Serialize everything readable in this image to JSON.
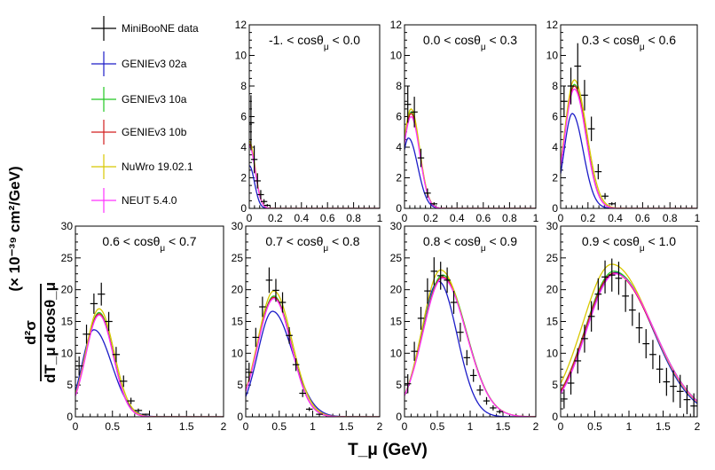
{
  "y_axis_title": {
    "numerator": "d²σ",
    "denominator": "dT_μ dcosθ_μ",
    "units": "(× 10⁻³⁹ cm²/GeV)"
  },
  "x_axis_title": "T_μ (GeV)",
  "legend": [
    {
      "label": "MiniBooNE data",
      "color": "#000000",
      "kind": "data"
    },
    {
      "label": "GENIEv3 02a",
      "color": "#1c1cc8",
      "kind": "line"
    },
    {
      "label": "GENIEv3 10a",
      "color": "#22c822",
      "kind": "line"
    },
    {
      "label": "GENIEv3 10b",
      "color": "#d21e1e",
      "kind": "line"
    },
    {
      "label": "NuWro 19.02.1",
      "color": "#d8c800",
      "kind": "line"
    },
    {
      "label": "NEUT 5.4.0",
      "color": "#ff30ff",
      "kind": "line"
    }
  ],
  "chart_data": [
    {
      "type": "line",
      "title": "-1. < cosθμ < 0.0",
      "xlabel": "T_μ (GeV)",
      "ylabel": "",
      "xlim": [
        0,
        1
      ],
      "ylim": [
        0,
        12
      ],
      "xticks": [
        "0",
        "0.2",
        "0.4",
        "0.6",
        "0.8",
        "1"
      ],
      "yticks": [
        "0",
        "2",
        "4",
        "6",
        "8",
        "10",
        "12"
      ],
      "data": [
        {
          "x": 0.013,
          "y": 5.6,
          "err": 1.8
        },
        {
          "x": 0.038,
          "y": 3.2,
          "err": 0.9
        },
        {
          "x": 0.063,
          "y": 1.8,
          "err": 0.5
        },
        {
          "x": 0.088,
          "y": 0.9,
          "err": 0.3
        },
        {
          "x": 0.113,
          "y": 0.45,
          "err": 0.15
        },
        {
          "x": 0.138,
          "y": 0.2,
          "err": 0.08
        }
      ],
      "models": [
        {
          "name": "GENIEv3 02a",
          "peak_x": 0.0,
          "peak_y": 2.8,
          "wl": 0.04,
          "wr": 0.04
        },
        {
          "name": "GENIEv3 10a",
          "peak_x": 0.0,
          "peak_y": 4.2,
          "wl": 0.04,
          "wr": 0.045
        },
        {
          "name": "GENIEv3 10b",
          "peak_x": 0.0,
          "peak_y": 4.2,
          "wl": 0.04,
          "wr": 0.045
        },
        {
          "name": "NuWro 19.02.1",
          "peak_x": 0.0,
          "peak_y": 4.4,
          "wl": 0.04,
          "wr": 0.045
        },
        {
          "name": "NEUT 5.4.0",
          "peak_x": 0.0,
          "peak_y": 4.1,
          "wl": 0.04,
          "wr": 0.045
        }
      ]
    },
    {
      "type": "line",
      "title": "0.0 < cosθμ < 0.3",
      "xlabel": "T_μ (GeV)",
      "ylabel": "",
      "xlim": [
        0,
        1
      ],
      "ylim": [
        0,
        12
      ],
      "xticks": [
        "0",
        "0.2",
        "0.4",
        "0.6",
        "0.8",
        "1"
      ],
      "yticks": [
        "0",
        "2",
        "4",
        "6",
        "8",
        "10",
        "12"
      ],
      "data": [
        {
          "x": 0.025,
          "y": 6.8,
          "err": 1.2
        },
        {
          "x": 0.075,
          "y": 6.3,
          "err": 1.0
        },
        {
          "x": 0.125,
          "y": 3.3,
          "err": 0.6
        },
        {
          "x": 0.175,
          "y": 1.0,
          "err": 0.3
        },
        {
          "x": 0.225,
          "y": 0.3,
          "err": 0.1
        }
      ],
      "models": [
        {
          "name": "GENIEv3 02a",
          "peak_x": 0.03,
          "peak_y": 4.6,
          "wl": 0.05,
          "wr": 0.07
        },
        {
          "name": "GENIEv3 10a",
          "peak_x": 0.05,
          "peak_y": 6.3,
          "wl": 0.06,
          "wr": 0.065
        },
        {
          "name": "GENIEv3 10b",
          "peak_x": 0.05,
          "peak_y": 6.2,
          "wl": 0.06,
          "wr": 0.065
        },
        {
          "name": "NuWro 19.02.1",
          "peak_x": 0.05,
          "peak_y": 6.5,
          "wl": 0.06,
          "wr": 0.065
        },
        {
          "name": "NEUT 5.4.0",
          "peak_x": 0.05,
          "peak_y": 6.0,
          "wl": 0.06,
          "wr": 0.065
        }
      ]
    },
    {
      "type": "line",
      "title": "0.3 < cosθμ < 0.6",
      "xlabel": "T_μ (GeV)",
      "ylabel": "",
      "xlim": [
        0,
        1
      ],
      "ylim": [
        0,
        12
      ],
      "xticks": [
        "0",
        "0.2",
        "0.4",
        "0.6",
        "0.8",
        "1"
      ],
      "yticks": [
        "0",
        "2",
        "4",
        "6",
        "8",
        "10",
        "12"
      ],
      "data": [
        {
          "x": 0.025,
          "y": 7.0,
          "err": 1.0
        },
        {
          "x": 0.075,
          "y": 8.0,
          "err": 1.2
        },
        {
          "x": 0.125,
          "y": 9.3,
          "err": 1.5
        },
        {
          "x": 0.175,
          "y": 7.4,
          "err": 1.0
        },
        {
          "x": 0.225,
          "y": 5.2,
          "err": 0.8
        },
        {
          "x": 0.275,
          "y": 2.4,
          "err": 0.5
        },
        {
          "x": 0.325,
          "y": 0.8,
          "err": 0.2
        },
        {
          "x": 0.375,
          "y": 0.3,
          "err": 0.1
        }
      ],
      "models": [
        {
          "name": "GENIEv3 02a",
          "peak_x": 0.085,
          "peak_y": 6.2,
          "wl": 0.06,
          "wr": 0.08
        },
        {
          "name": "GENIEv3 10a",
          "peak_x": 0.1,
          "peak_y": 8.1,
          "wl": 0.07,
          "wr": 0.085
        },
        {
          "name": "GENIEv3 10b",
          "peak_x": 0.1,
          "peak_y": 8.0,
          "wl": 0.07,
          "wr": 0.085
        },
        {
          "name": "NuWro 19.02.1",
          "peak_x": 0.1,
          "peak_y": 8.4,
          "wl": 0.07,
          "wr": 0.09
        },
        {
          "name": "NEUT 5.4.0",
          "peak_x": 0.1,
          "peak_y": 7.8,
          "wl": 0.07,
          "wr": 0.085
        }
      ]
    },
    {
      "type": "line",
      "title": "0.6 < cosθμ < 0.7",
      "xlabel": "T_μ (GeV)",
      "ylabel": "",
      "xlim": [
        0,
        2
      ],
      "ylim": [
        0,
        30
      ],
      "xticks": [
        "0",
        "0.5",
        "1",
        "1.5",
        "2"
      ],
      "yticks": [
        "0",
        "5",
        "10",
        "15",
        "20",
        "25",
        "30"
      ],
      "data": [
        {
          "x": 0.05,
          "y": 8.0,
          "err": 1.5
        },
        {
          "x": 0.15,
          "y": 13.0,
          "err": 1.5
        },
        {
          "x": 0.25,
          "y": 17.8,
          "err": 1.6
        },
        {
          "x": 0.35,
          "y": 19.3,
          "err": 1.8
        },
        {
          "x": 0.45,
          "y": 15.0,
          "err": 1.5
        },
        {
          "x": 0.55,
          "y": 9.8,
          "err": 1.2
        },
        {
          "x": 0.65,
          "y": 5.6,
          "err": 0.9
        },
        {
          "x": 0.75,
          "y": 2.5,
          "err": 0.5
        },
        {
          "x": 0.85,
          "y": 1.0,
          "err": 0.3
        },
        {
          "x": 0.95,
          "y": 0.4,
          "err": 0.1
        }
      ],
      "models": [
        {
          "name": "GENIEv3 02a",
          "peak_x": 0.25,
          "peak_y": 13.7,
          "wl": 0.16,
          "wr": 0.24
        },
        {
          "name": "GENIEv3 10a",
          "peak_x": 0.32,
          "peak_y": 16.4,
          "wl": 0.18,
          "wr": 0.19
        },
        {
          "name": "GENIEv3 10b",
          "peak_x": 0.32,
          "peak_y": 16.2,
          "wl": 0.18,
          "wr": 0.19
        },
        {
          "name": "NuWro 19.02.1",
          "peak_x": 0.32,
          "peak_y": 17.0,
          "wl": 0.18,
          "wr": 0.2
        },
        {
          "name": "NEUT 5.4.0",
          "peak_x": 0.32,
          "peak_y": 16.0,
          "wl": 0.18,
          "wr": 0.19
        }
      ]
    },
    {
      "type": "line",
      "title": "0.7 < cosθμ < 0.8",
      "xlabel": "T_μ (GeV)",
      "ylabel": "",
      "xlim": [
        0,
        2
      ],
      "ylim": [
        0,
        30
      ],
      "xticks": [
        "0",
        "0.5",
        "1",
        "1.5",
        "2"
      ],
      "yticks": [
        "0",
        "5",
        "10",
        "15",
        "20",
        "25",
        "30"
      ],
      "data": [
        {
          "x": 0.05,
          "y": 7.0,
          "err": 1.5
        },
        {
          "x": 0.15,
          "y": 12.5,
          "err": 1.5
        },
        {
          "x": 0.25,
          "y": 17.3,
          "err": 1.6
        },
        {
          "x": 0.35,
          "y": 21.5,
          "err": 2.0
        },
        {
          "x": 0.45,
          "y": 19.9,
          "err": 1.8
        },
        {
          "x": 0.55,
          "y": 18.0,
          "err": 1.6
        },
        {
          "x": 0.65,
          "y": 12.8,
          "err": 1.3
        },
        {
          "x": 0.75,
          "y": 8.2,
          "err": 1.0
        },
        {
          "x": 0.85,
          "y": 3.7,
          "err": 0.6
        },
        {
          "x": 0.95,
          "y": 1.2,
          "err": 0.3
        },
        {
          "x": 1.1,
          "y": 0.4,
          "err": 0.1
        }
      ],
      "models": [
        {
          "name": "GENIEv3 02a",
          "peak_x": 0.4,
          "peak_y": 16.6,
          "wl": 0.22,
          "wr": 0.3
        },
        {
          "name": "GENIEv3 10a",
          "peak_x": 0.42,
          "peak_y": 19.0,
          "wl": 0.24,
          "wr": 0.26
        },
        {
          "name": "GENIEv3 10b",
          "peak_x": 0.42,
          "peak_y": 18.8,
          "wl": 0.24,
          "wr": 0.26
        },
        {
          "name": "NuWro 19.02.1",
          "peak_x": 0.42,
          "peak_y": 19.8,
          "wl": 0.24,
          "wr": 0.27
        },
        {
          "name": "NEUT 5.4.0",
          "peak_x": 0.42,
          "peak_y": 18.6,
          "wl": 0.24,
          "wr": 0.26
        }
      ]
    },
    {
      "type": "line",
      "title": "0.8 < cosθμ < 0.9",
      "xlabel": "T_μ (GeV)",
      "ylabel": "",
      "xlim": [
        0,
        2
      ],
      "ylim": [
        0,
        30
      ],
      "xticks": [
        "0",
        "0.5",
        "1",
        "1.5",
        "2"
      ],
      "yticks": [
        "0",
        "5",
        "10",
        "15",
        "20",
        "25",
        "30"
      ],
      "data": [
        {
          "x": 0.05,
          "y": 5.2,
          "err": 1.5
        },
        {
          "x": 0.15,
          "y": 10.3,
          "err": 1.5
        },
        {
          "x": 0.25,
          "y": 15.5,
          "err": 1.8
        },
        {
          "x": 0.35,
          "y": 19.8,
          "err": 2.0
        },
        {
          "x": 0.45,
          "y": 22.9,
          "err": 2.2
        },
        {
          "x": 0.55,
          "y": 22.2,
          "err": 2.2
        },
        {
          "x": 0.65,
          "y": 21.5,
          "err": 2.0
        },
        {
          "x": 0.75,
          "y": 18.0,
          "err": 1.8
        },
        {
          "x": 0.85,
          "y": 13.3,
          "err": 1.5
        },
        {
          "x": 0.95,
          "y": 9.3,
          "err": 1.2
        },
        {
          "x": 1.05,
          "y": 6.5,
          "err": 1.0
        },
        {
          "x": 1.15,
          "y": 4.2,
          "err": 0.8
        },
        {
          "x": 1.25,
          "y": 2.5,
          "err": 0.6
        },
        {
          "x": 1.35,
          "y": 1.4,
          "err": 0.4
        },
        {
          "x": 1.45,
          "y": 0.8,
          "err": 0.3
        }
      ],
      "models": [
        {
          "name": "GENIEv3 02a",
          "peak_x": 0.52,
          "peak_y": 21.3,
          "wl": 0.27,
          "wr": 0.28
        },
        {
          "name": "GENIEv3 10a",
          "peak_x": 0.58,
          "peak_y": 22.3,
          "wl": 0.3,
          "wr": 0.36
        },
        {
          "name": "GENIEv3 10b",
          "peak_x": 0.58,
          "peak_y": 22.0,
          "wl": 0.3,
          "wr": 0.36
        },
        {
          "name": "NuWro 19.02.1",
          "peak_x": 0.55,
          "peak_y": 23.1,
          "wl": 0.28,
          "wr": 0.37
        },
        {
          "name": "NEUT 5.4.0",
          "peak_x": 0.58,
          "peak_y": 21.8,
          "wl": 0.3,
          "wr": 0.36
        }
      ]
    },
    {
      "type": "line",
      "title": "0.9 < cosθμ < 1.0",
      "xlabel": "T_μ (GeV)",
      "ylabel": "",
      "xlim": [
        0,
        2
      ],
      "ylim": [
        0,
        30
      ],
      "xticks": [
        "0",
        "0.5",
        "1",
        "1.5",
        "2"
      ],
      "yticks": [
        "0",
        "5",
        "10",
        "15",
        "20",
        "25",
        "30"
      ],
      "data": [
        {
          "x": 0.05,
          "y": 2.8,
          "err": 1.5
        },
        {
          "x": 0.15,
          "y": 5.3,
          "err": 1.8
        },
        {
          "x": 0.25,
          "y": 8.8,
          "err": 2.0
        },
        {
          "x": 0.35,
          "y": 12.3,
          "err": 2.2
        },
        {
          "x": 0.45,
          "y": 15.8,
          "err": 2.4
        },
        {
          "x": 0.55,
          "y": 19.3,
          "err": 2.5
        },
        {
          "x": 0.65,
          "y": 22.0,
          "err": 2.6
        },
        {
          "x": 0.75,
          "y": 22.3,
          "err": 2.6
        },
        {
          "x": 0.85,
          "y": 21.8,
          "err": 2.6
        },
        {
          "x": 0.95,
          "y": 19.0,
          "err": 2.5
        },
        {
          "x": 1.05,
          "y": 16.8,
          "err": 2.5
        },
        {
          "x": 1.15,
          "y": 14.0,
          "err": 2.4
        },
        {
          "x": 1.25,
          "y": 11.5,
          "err": 2.3
        },
        {
          "x": 1.35,
          "y": 9.8,
          "err": 2.3
        },
        {
          "x": 1.45,
          "y": 7.5,
          "err": 2.2
        },
        {
          "x": 1.55,
          "y": 5.5,
          "err": 2.2
        },
        {
          "x": 1.65,
          "y": 4.8,
          "err": 2.5
        },
        {
          "x": 1.75,
          "y": 4.0,
          "err": 2.6
        },
        {
          "x": 1.85,
          "y": 2.7,
          "err": 2.3
        },
        {
          "x": 1.95,
          "y": 1.7,
          "err": 2.0
        }
      ],
      "models": [
        {
          "name": "GENIEv3 02a",
          "peak_x": 0.8,
          "peak_y": 22.7,
          "wl": 0.42,
          "wr": 0.55
        },
        {
          "name": "GENIEv3 10a",
          "peak_x": 0.78,
          "peak_y": 22.9,
          "wl": 0.42,
          "wr": 0.58
        },
        {
          "name": "GENIEv3 10b",
          "peak_x": 0.78,
          "peak_y": 22.6,
          "wl": 0.42,
          "wr": 0.58
        },
        {
          "name": "NuWro 19.02.1",
          "peak_x": 0.75,
          "peak_y": 24.0,
          "wl": 0.43,
          "wr": 0.58
        },
        {
          "name": "NEUT 5.4.0",
          "peak_x": 0.8,
          "peak_y": 22.5,
          "wl": 0.42,
          "wr": 0.57
        }
      ]
    }
  ]
}
